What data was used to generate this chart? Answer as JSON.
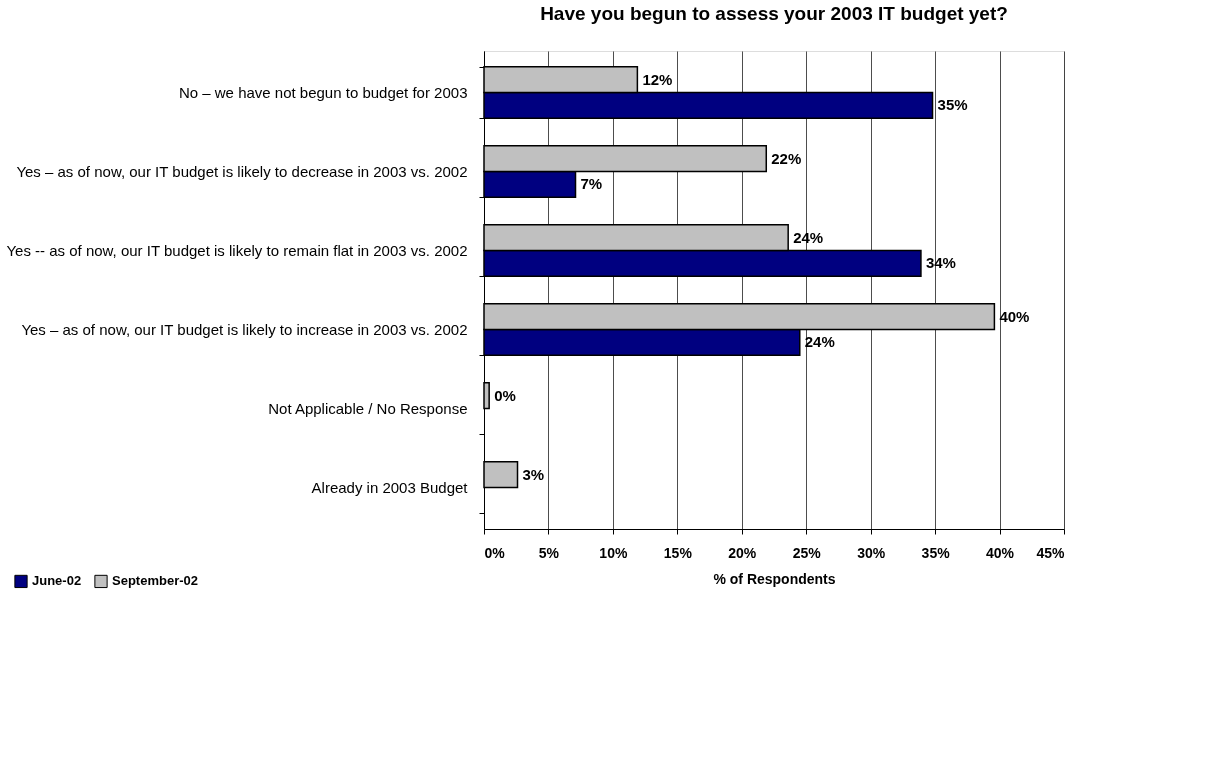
{
  "chart_data": {
    "type": "bar",
    "orientation": "horizontal",
    "title": "Have you begun to assess your 2003 IT budget yet?",
    "xlabel": "% of Respondents",
    "categories": [
      "No – we have not begun to budget for 2003",
      "Yes – as of now, our IT budget is likely to decrease in 2003 vs. 2002",
      "Yes -- as of now, our IT budget is likely to remain flat in 2003 vs. 2002",
      "Yes – as of now, our IT budget is likely to increase in 2003 vs. 2002",
      "Not Applicable / No Response",
      "Already in 2003 Budget"
    ],
    "series": [
      {
        "name": "June-02",
        "color": "#000080",
        "values": [
          34.8,
          7.1,
          33.9,
          24.5,
          null,
          null
        ],
        "value_labels": [
          "35%",
          "7%",
          "34%",
          "24%",
          null,
          null
        ]
      },
      {
        "name": "September-02",
        "color": "#c0c0c0",
        "values": [
          11.9,
          21.9,
          23.6,
          39.6,
          0.4,
          2.6
        ],
        "value_labels": [
          "12%",
          "22%",
          "24%",
          "40%",
          "0%",
          "3%"
        ]
      }
    ],
    "xlim": [
      0,
      45
    ],
    "xticks": [
      {
        "value": 0,
        "label": "0%"
      },
      {
        "value": 5,
        "label": "5%"
      },
      {
        "value": 10,
        "label": "10%"
      },
      {
        "value": 15,
        "label": "15%"
      },
      {
        "value": 20,
        "label": "20%"
      },
      {
        "value": 25,
        "label": "25%"
      },
      {
        "value": 30,
        "label": "30%"
      },
      {
        "value": 35,
        "label": "35%"
      },
      {
        "value": 40,
        "label": "40%"
      },
      {
        "value": 45,
        "label": "45%"
      }
    ],
    "grid": "x",
    "legend": "bottom left"
  }
}
